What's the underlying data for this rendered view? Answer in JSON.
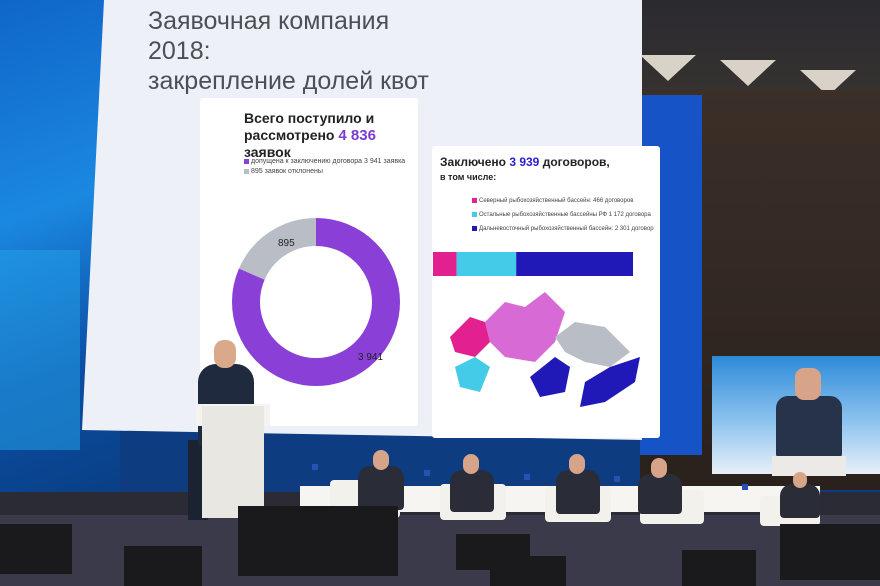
{
  "slide": {
    "title_line1": "Заявочная компания 2018:",
    "title_line2": "закрепление долей квот",
    "left_panel": {
      "heading_line1": "Всего поступило и",
      "heading_line2_prefix": "рассмотрено",
      "heading_total": "4 836",
      "heading_suffix": "заявок",
      "legend_admitted": "допущена к заключению договора 3 941 заявка",
      "legend_rejected": "895 заявок отклонены",
      "donut": {
        "values": [
          3941,
          895
        ],
        "labels": [
          "3 941",
          "895"
        ],
        "colors": [
          "#8a3fd6",
          "#b9bec6"
        ]
      }
    },
    "right_panel": {
      "heading_prefix": "Заключено",
      "heading_total": "3 939",
      "heading_suffix": "договоров,",
      "heading_line2": "в том числе:",
      "legend_north": "Северный рыбохозяйственный бассейн: 466 договоров",
      "legend_other": "Остальные рыбохозяйственные бассейны РФ 1 172 договора",
      "legend_far_east": "Дальневосточный рыбохозяйственный бассейн: 2 301 договор",
      "bar": {
        "values": [
          466,
          1172,
          2301
        ],
        "colors": [
          "#e3208f",
          "#43cbe8",
          "#2019b8"
        ]
      },
      "map_colors": [
        "#d86ad6",
        "#e3208f",
        "#43cbe8",
        "#2019b8",
        "#b9bec6"
      ]
    }
  }
}
